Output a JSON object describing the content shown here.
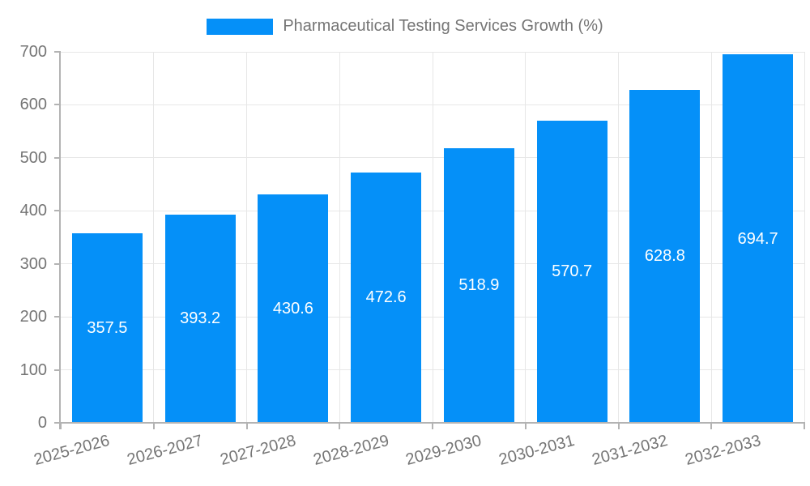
{
  "legend": {
    "label": "Pharmaceutical Testing Services Growth (%)"
  },
  "chart_data": {
    "type": "bar",
    "title": "Pharmaceutical Testing Services Growth (%)",
    "categories": [
      "2025-2026",
      "2026-2027",
      "2027-2028",
      "2028-2029",
      "2029-2030",
      "2030-2031",
      "2031-2032",
      "2032-2033"
    ],
    "values": [
      357.5,
      393.2,
      430.6,
      472.6,
      518.9,
      570.7,
      628.8,
      694.7
    ],
    "xlabel": "",
    "ylabel": "",
    "ylim": [
      0,
      700
    ],
    "yticks": [
      0,
      100,
      200,
      300,
      400,
      500,
      600,
      700
    ],
    "grid": "on",
    "legend_position": "top-center",
    "bar_color": "#0590F8",
    "value_label_color": "#ffffff",
    "axis_text_color": "#757575",
    "grid_color": "#e7e7e7",
    "axis_line_color": "#b3b3b3"
  }
}
